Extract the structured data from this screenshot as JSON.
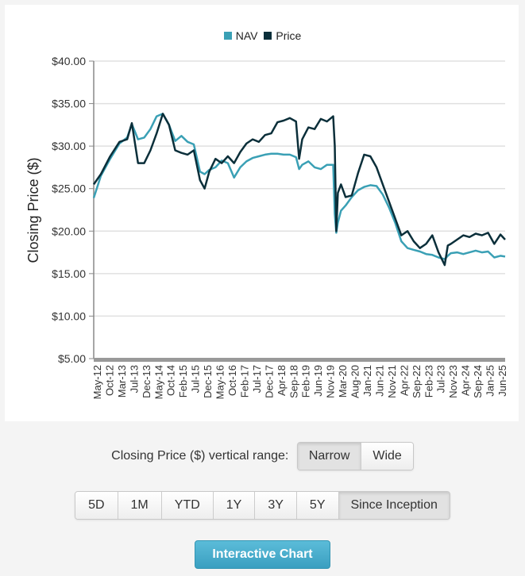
{
  "colors": {
    "nav": "#3aa0b5",
    "price": "#0b2f3a",
    "grid": "#e0e0e0",
    "axis": "#888888",
    "accent_button": "#43a9c9"
  },
  "legend": [
    {
      "label": "NAV",
      "color": "#3aa0b5"
    },
    {
      "label": "Price",
      "color": "#0b2f3a"
    }
  ],
  "controls": {
    "range_label": "Closing Price ($) vertical range:",
    "range_options": [
      {
        "label": "Narrow",
        "active": true
      },
      {
        "label": "Wide",
        "active": false
      }
    ],
    "periods": [
      {
        "label": "5D",
        "active": false
      },
      {
        "label": "1M",
        "active": false
      },
      {
        "label": "YTD",
        "active": false
      },
      {
        "label": "1Y",
        "active": false
      },
      {
        "label": "3Y",
        "active": false
      },
      {
        "label": "5Y",
        "active": false
      },
      {
        "label": "Since Inception",
        "active": true
      }
    ],
    "interactive_chart_label": "Interactive Chart"
  },
  "chart_data": {
    "type": "line",
    "title": "",
    "xlabel": "",
    "ylabel": "Closing Price ($)",
    "ylim": [
      5,
      40
    ],
    "yticks": [
      5,
      10,
      15,
      20,
      25,
      30,
      35,
      40
    ],
    "ytick_labels": [
      "$5.00",
      "$10.00",
      "$15.00",
      "$20.00",
      "$25.00",
      "$30.00",
      "$35.00",
      "$40.00"
    ],
    "grid": true,
    "legend_position": "top-center",
    "x_tick_labels": [
      "May-12",
      "Oct-12",
      "Mar-13",
      "Jul-13",
      "Dec-13",
      "May-14",
      "Oct-14",
      "Feb-15",
      "Jul-15",
      "Dec-15",
      "May-16",
      "Oct-16",
      "Feb-17",
      "Jul-17",
      "Dec-17",
      "Apr-18",
      "Sep-18",
      "Feb-19",
      "Jun-19",
      "Nov-19",
      "Mar-20",
      "Aug-20",
      "Jan-21",
      "Jun-21",
      "Nov-21",
      "Apr-22",
      "Sep-22",
      "Feb-23",
      "Jul-23",
      "Nov-23",
      "Apr-24",
      "Sep-24",
      "Jan-25",
      "Jun-25"
    ],
    "x": [
      2012.37,
      2012.6,
      2012.9,
      2013.2,
      2013.45,
      2013.6,
      2013.8,
      2014.0,
      2014.2,
      2014.4,
      2014.6,
      2014.8,
      2015.0,
      2015.2,
      2015.4,
      2015.6,
      2015.8,
      2015.95,
      2016.1,
      2016.3,
      2016.5,
      2016.7,
      2016.9,
      2017.1,
      2017.3,
      2017.5,
      2017.7,
      2017.9,
      2018.1,
      2018.3,
      2018.5,
      2018.7,
      2018.9,
      2019.0,
      2019.1,
      2019.3,
      2019.5,
      2019.7,
      2019.9,
      2020.1,
      2020.15,
      2020.2,
      2020.25,
      2020.35,
      2020.5,
      2020.7,
      2020.9,
      2021.1,
      2021.3,
      2021.5,
      2021.7,
      2021.9,
      2022.1,
      2022.3,
      2022.5,
      2022.7,
      2022.9,
      2023.1,
      2023.3,
      2023.5,
      2023.7,
      2023.8,
      2023.9,
      2024.1,
      2024.3,
      2024.5,
      2024.7,
      2024.9,
      2025.1,
      2025.3,
      2025.5,
      2025.65
    ],
    "series": [
      {
        "name": "NAV",
        "values": [
          23.9,
          26.5,
          28.5,
          30.3,
          31.0,
          32.6,
          30.8,
          31.0,
          32.0,
          33.5,
          33.8,
          32.5,
          30.6,
          31.2,
          30.5,
          30.2,
          27.0,
          26.7,
          27.2,
          27.5,
          28.3,
          28.0,
          26.3,
          27.5,
          28.2,
          28.6,
          28.8,
          29.0,
          29.1,
          29.1,
          29.0,
          29.0,
          28.7,
          27.3,
          27.8,
          28.2,
          27.5,
          27.3,
          27.8,
          27.8,
          22.0,
          19.8,
          21.0,
          22.4,
          23.0,
          24.0,
          24.8,
          25.2,
          25.4,
          25.3,
          24.3,
          22.8,
          21.0,
          18.8,
          18.0,
          17.8,
          17.6,
          17.3,
          17.2,
          16.9,
          16.7,
          17.1,
          17.4,
          17.5,
          17.3,
          17.5,
          17.7,
          17.5,
          17.6,
          16.9,
          17.1,
          17.0
        ]
      },
      {
        "name": "Price",
        "values": [
          25.5,
          26.7,
          28.8,
          30.5,
          30.8,
          32.7,
          28.0,
          28.0,
          29.5,
          31.5,
          33.8,
          32.5,
          29.5,
          29.2,
          29.0,
          29.5,
          26.0,
          25.0,
          27.0,
          28.5,
          28.0,
          28.8,
          28.0,
          29.3,
          30.3,
          30.8,
          30.5,
          31.3,
          31.5,
          32.8,
          33.0,
          33.3,
          32.9,
          28.5,
          30.8,
          32.2,
          32.0,
          33.2,
          32.9,
          33.5,
          30.0,
          20.0,
          24.5,
          25.5,
          24.0,
          24.2,
          26.8,
          29.0,
          28.8,
          27.5,
          25.5,
          23.5,
          21.5,
          19.5,
          20.0,
          18.8,
          18.0,
          18.5,
          19.5,
          17.5,
          16.0,
          18.3,
          18.5,
          19.0,
          19.5,
          19.3,
          19.7,
          19.5,
          19.8,
          18.5,
          19.6,
          19.0
        ]
      }
    ]
  }
}
